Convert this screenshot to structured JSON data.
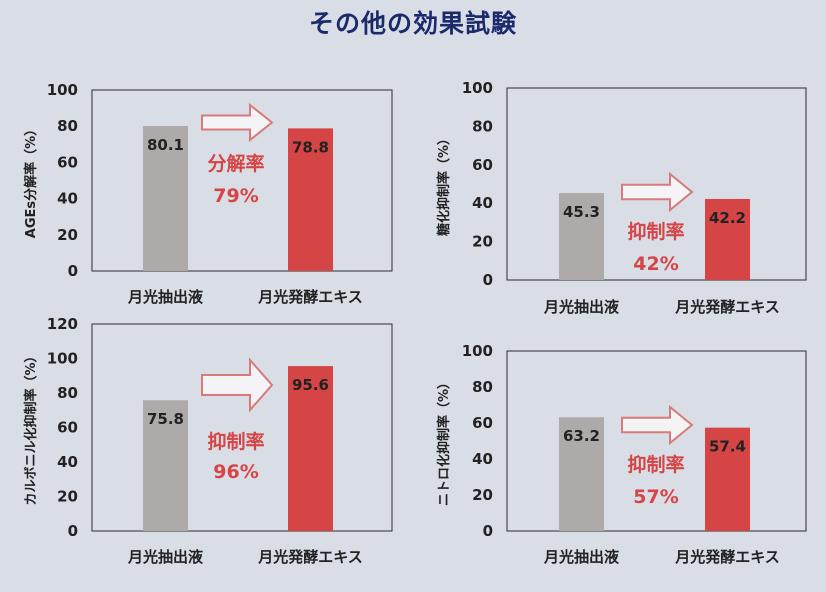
{
  "title": "その他の効果試験",
  "chart_data": [
    {
      "type": "bar",
      "categories": [
        "月光抽出液",
        "月光発酵エキス"
      ],
      "values": [
        80.1,
        78.8
      ],
      "ylabel": "AGEs分解率（%）",
      "ylim": [
        0,
        100
      ],
      "yticks": [
        0,
        20,
        40,
        60,
        80,
        100
      ],
      "annotation": {
        "label": "分解率",
        "value": "79%"
      },
      "colors": [
        "#aeaaa9",
        "#d64545"
      ]
    },
    {
      "type": "bar",
      "categories": [
        "月光抽出液",
        "月光発酵エキス"
      ],
      "values": [
        45.3,
        42.2
      ],
      "ylabel": "糖化抑制率（%）",
      "ylim": [
        0,
        100
      ],
      "yticks": [
        0,
        20,
        40,
        60,
        80,
        100
      ],
      "annotation": {
        "label": "抑制率",
        "value": "42%"
      },
      "colors": [
        "#aeaaa9",
        "#d64545"
      ]
    },
    {
      "type": "bar",
      "categories": [
        "月光抽出液",
        "月光発酵エキス"
      ],
      "values": [
        75.8,
        95.6
      ],
      "ylabel": "カルボニル化抑制率（%）",
      "ylim": [
        0,
        120
      ],
      "yticks": [
        0,
        20,
        40,
        60,
        80,
        100,
        120
      ],
      "annotation": {
        "label": "抑制率",
        "value": "96%"
      },
      "colors": [
        "#aeaaa9",
        "#d64545"
      ]
    },
    {
      "type": "bar",
      "categories": [
        "月光抽出液",
        "月光発酵エキス"
      ],
      "values": [
        63.2,
        57.4
      ],
      "ylabel": "ニトロ化抑制率（%）",
      "ylim": [
        0,
        100
      ],
      "yticks": [
        0,
        20,
        40,
        60,
        80,
        100
      ],
      "annotation": {
        "label": "抑制率",
        "value": "57%"
      },
      "colors": [
        "#aeaaa9",
        "#d64545"
      ]
    }
  ]
}
